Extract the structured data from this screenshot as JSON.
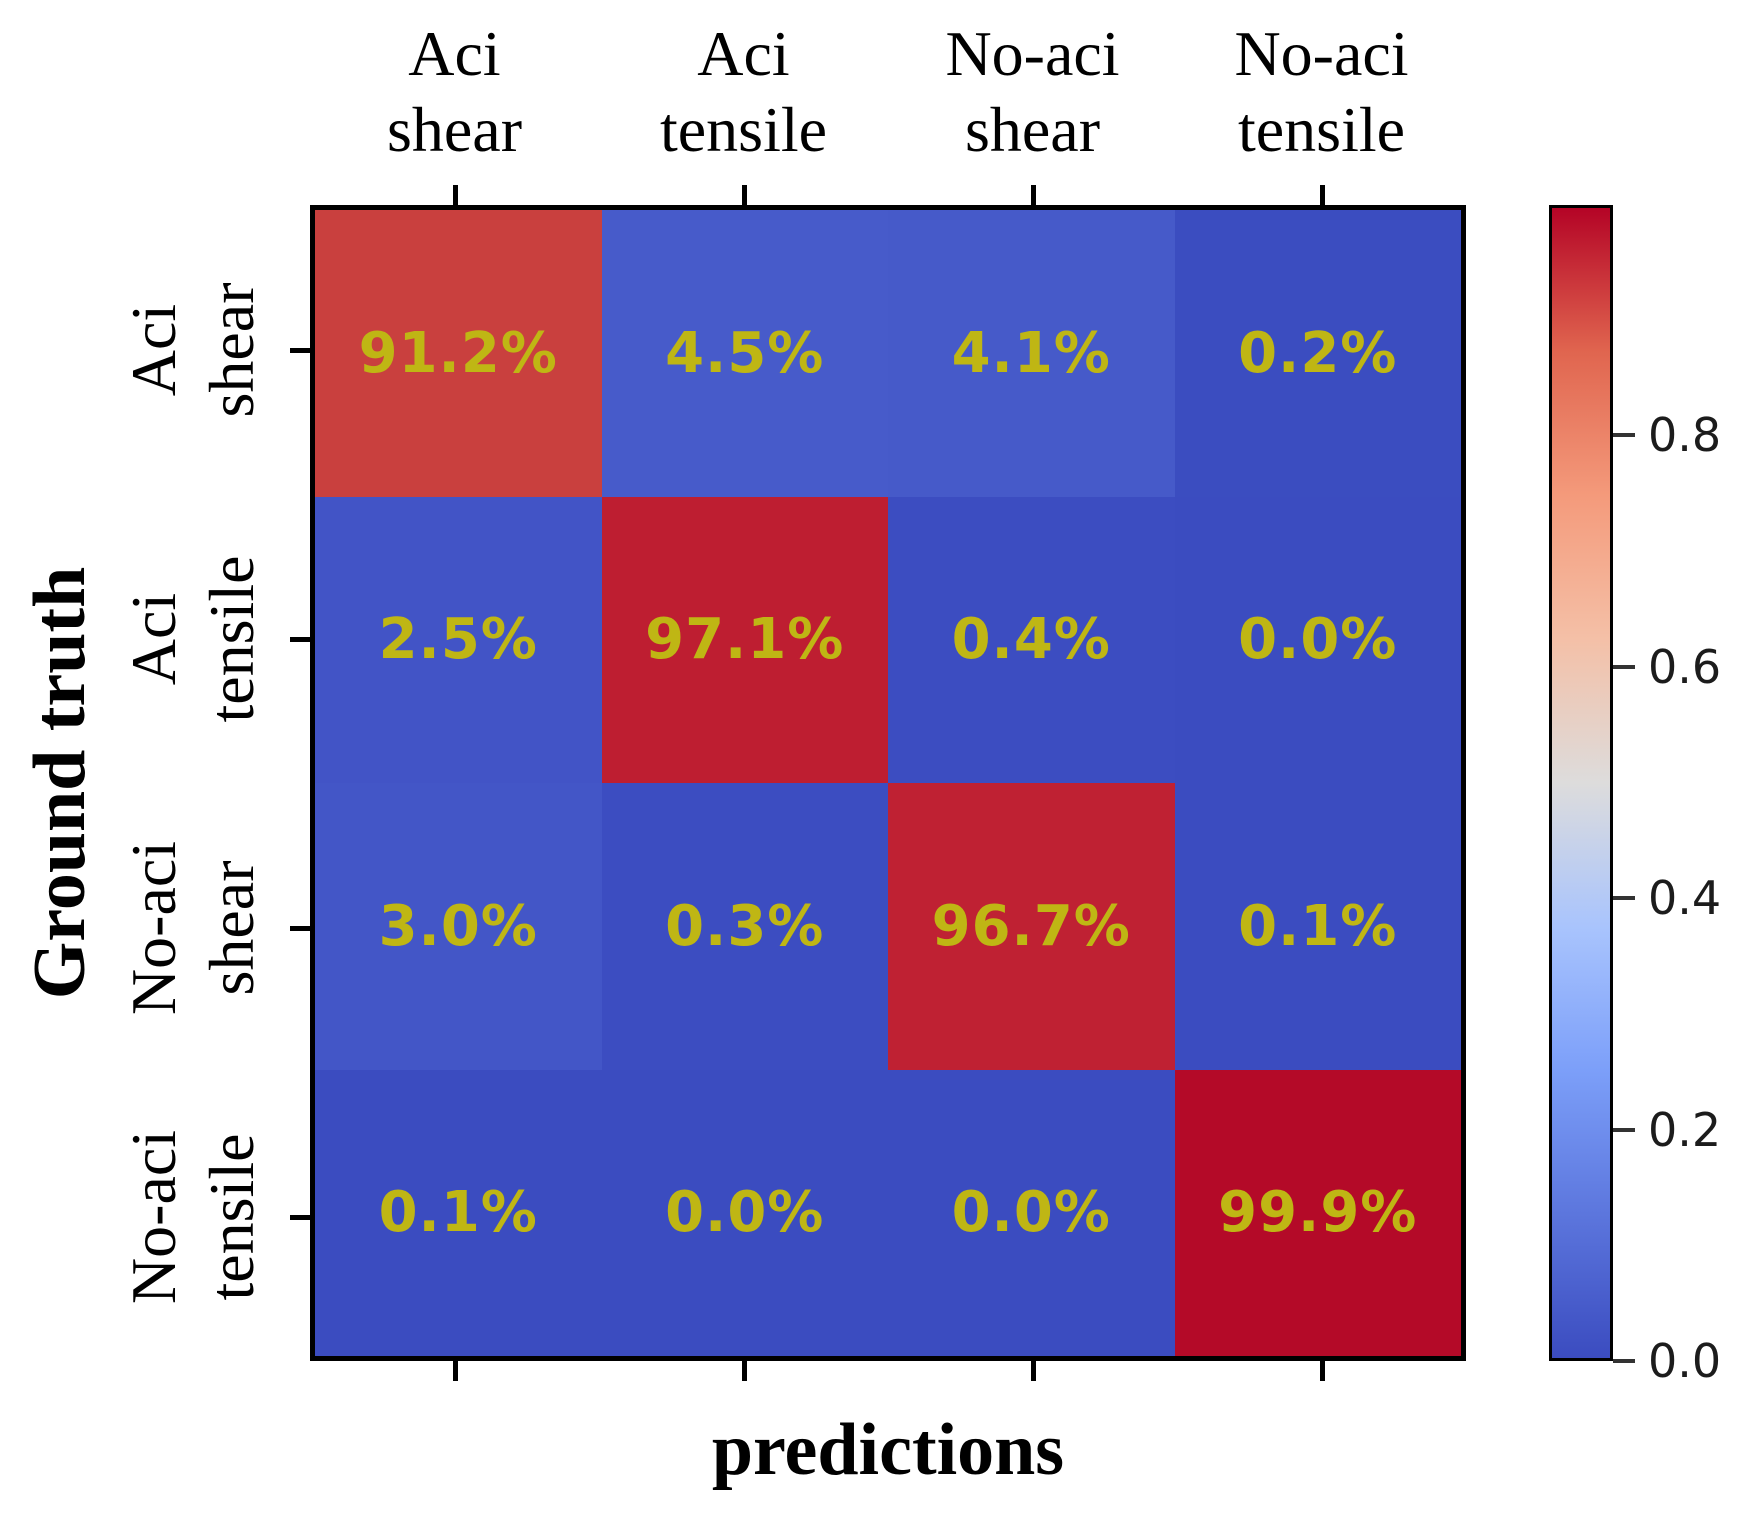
{
  "axes": {
    "x_title": "predictions",
    "y_title": "Ground truth",
    "x_tick_labels": [
      [
        "Aci",
        "shear"
      ],
      [
        "Aci",
        "tensile"
      ],
      [
        "No-aci",
        "shear"
      ],
      [
        "No-aci",
        "tensile"
      ]
    ],
    "y_tick_labels": [
      [
        "Aci",
        "shear"
      ],
      [
        "Aci",
        "tensile"
      ],
      [
        "No-aci",
        "shear"
      ],
      [
        "No-aci",
        "tensile"
      ]
    ]
  },
  "matrix": {
    "rows": [
      {
        "cells": [
          {
            "label": "91.2%",
            "color": "#C9403E"
          },
          {
            "label": "4.5%",
            "color": "#475BCA"
          },
          {
            "label": "4.1%",
            "color": "#465AC9"
          },
          {
            "label": "0.2%",
            "color": "#3B4DC0"
          }
        ]
      },
      {
        "cells": [
          {
            "label": "2.5%",
            "color": "#4254C6"
          },
          {
            "label": "97.1%",
            "color": "#BE1E31"
          },
          {
            "label": "0.4%",
            "color": "#3C4DC1"
          },
          {
            "label": "0.0%",
            "color": "#3B4CC0"
          }
        ]
      },
      {
        "cells": [
          {
            "label": "3.0%",
            "color": "#4356C7"
          },
          {
            "label": "0.3%",
            "color": "#3C4DC1"
          },
          {
            "label": "96.7%",
            "color": "#BF2133"
          },
          {
            "label": "0.1%",
            "color": "#3B4CC0"
          }
        ]
      },
      {
        "cells": [
          {
            "label": "0.1%",
            "color": "#3B4CC0"
          },
          {
            "label": "0.0%",
            "color": "#3B4CC0"
          },
          {
            "label": "0.0%",
            "color": "#3B4CC0"
          },
          {
            "label": "99.9%",
            "color": "#B40A28"
          }
        ]
      }
    ]
  },
  "colorbar": {
    "ticks": [
      {
        "label": "0.8",
        "value": 0.8
      },
      {
        "label": "0.6",
        "value": 0.6
      },
      {
        "label": "0.4",
        "value": 0.4
      },
      {
        "label": "0.2",
        "value": 0.2
      },
      {
        "label": "0.0",
        "value": 0.0
      }
    ],
    "vmin": 0.0,
    "vmax": 0.999,
    "gradient_stops_bottom_to_top": [
      "#3B4CC0",
      "#5C76DD",
      "#7C9FF9",
      "#A9C4FD",
      "#DDDCDC",
      "#F4C0A7",
      "#F49A7B",
      "#E0654F",
      "#B40426"
    ]
  },
  "colors": {
    "cell_text": "#BFB614",
    "frame": "#000000",
    "colormap_low": "#3B4CC0",
    "colormap_high": "#B40426"
  },
  "chart_data": {
    "type": "heatmap",
    "title": "",
    "xlabel": "predictions",
    "ylabel": "Ground truth",
    "x_categories": [
      "Aci shear",
      "Aci tensile",
      "No-aci shear",
      "No-aci tensile"
    ],
    "y_categories": [
      "Aci shear",
      "Aci tensile",
      "No-aci shear",
      "No-aci tensile"
    ],
    "values_percent": [
      [
        91.2,
        4.5,
        4.1,
        0.2
      ],
      [
        2.5,
        97.1,
        0.4,
        0.0
      ],
      [
        3.0,
        0.3,
        96.7,
        0.1
      ],
      [
        0.1,
        0.0,
        0.0,
        99.9
      ]
    ],
    "cell_label_format": "percent, one decimal",
    "colormap": "coolwarm",
    "colorbar_ticks": [
      0.0,
      0.2,
      0.4,
      0.6,
      0.8
    ],
    "colorbar_range": [
      0.0,
      0.999
    ],
    "legend_position": "right",
    "grid": false
  }
}
